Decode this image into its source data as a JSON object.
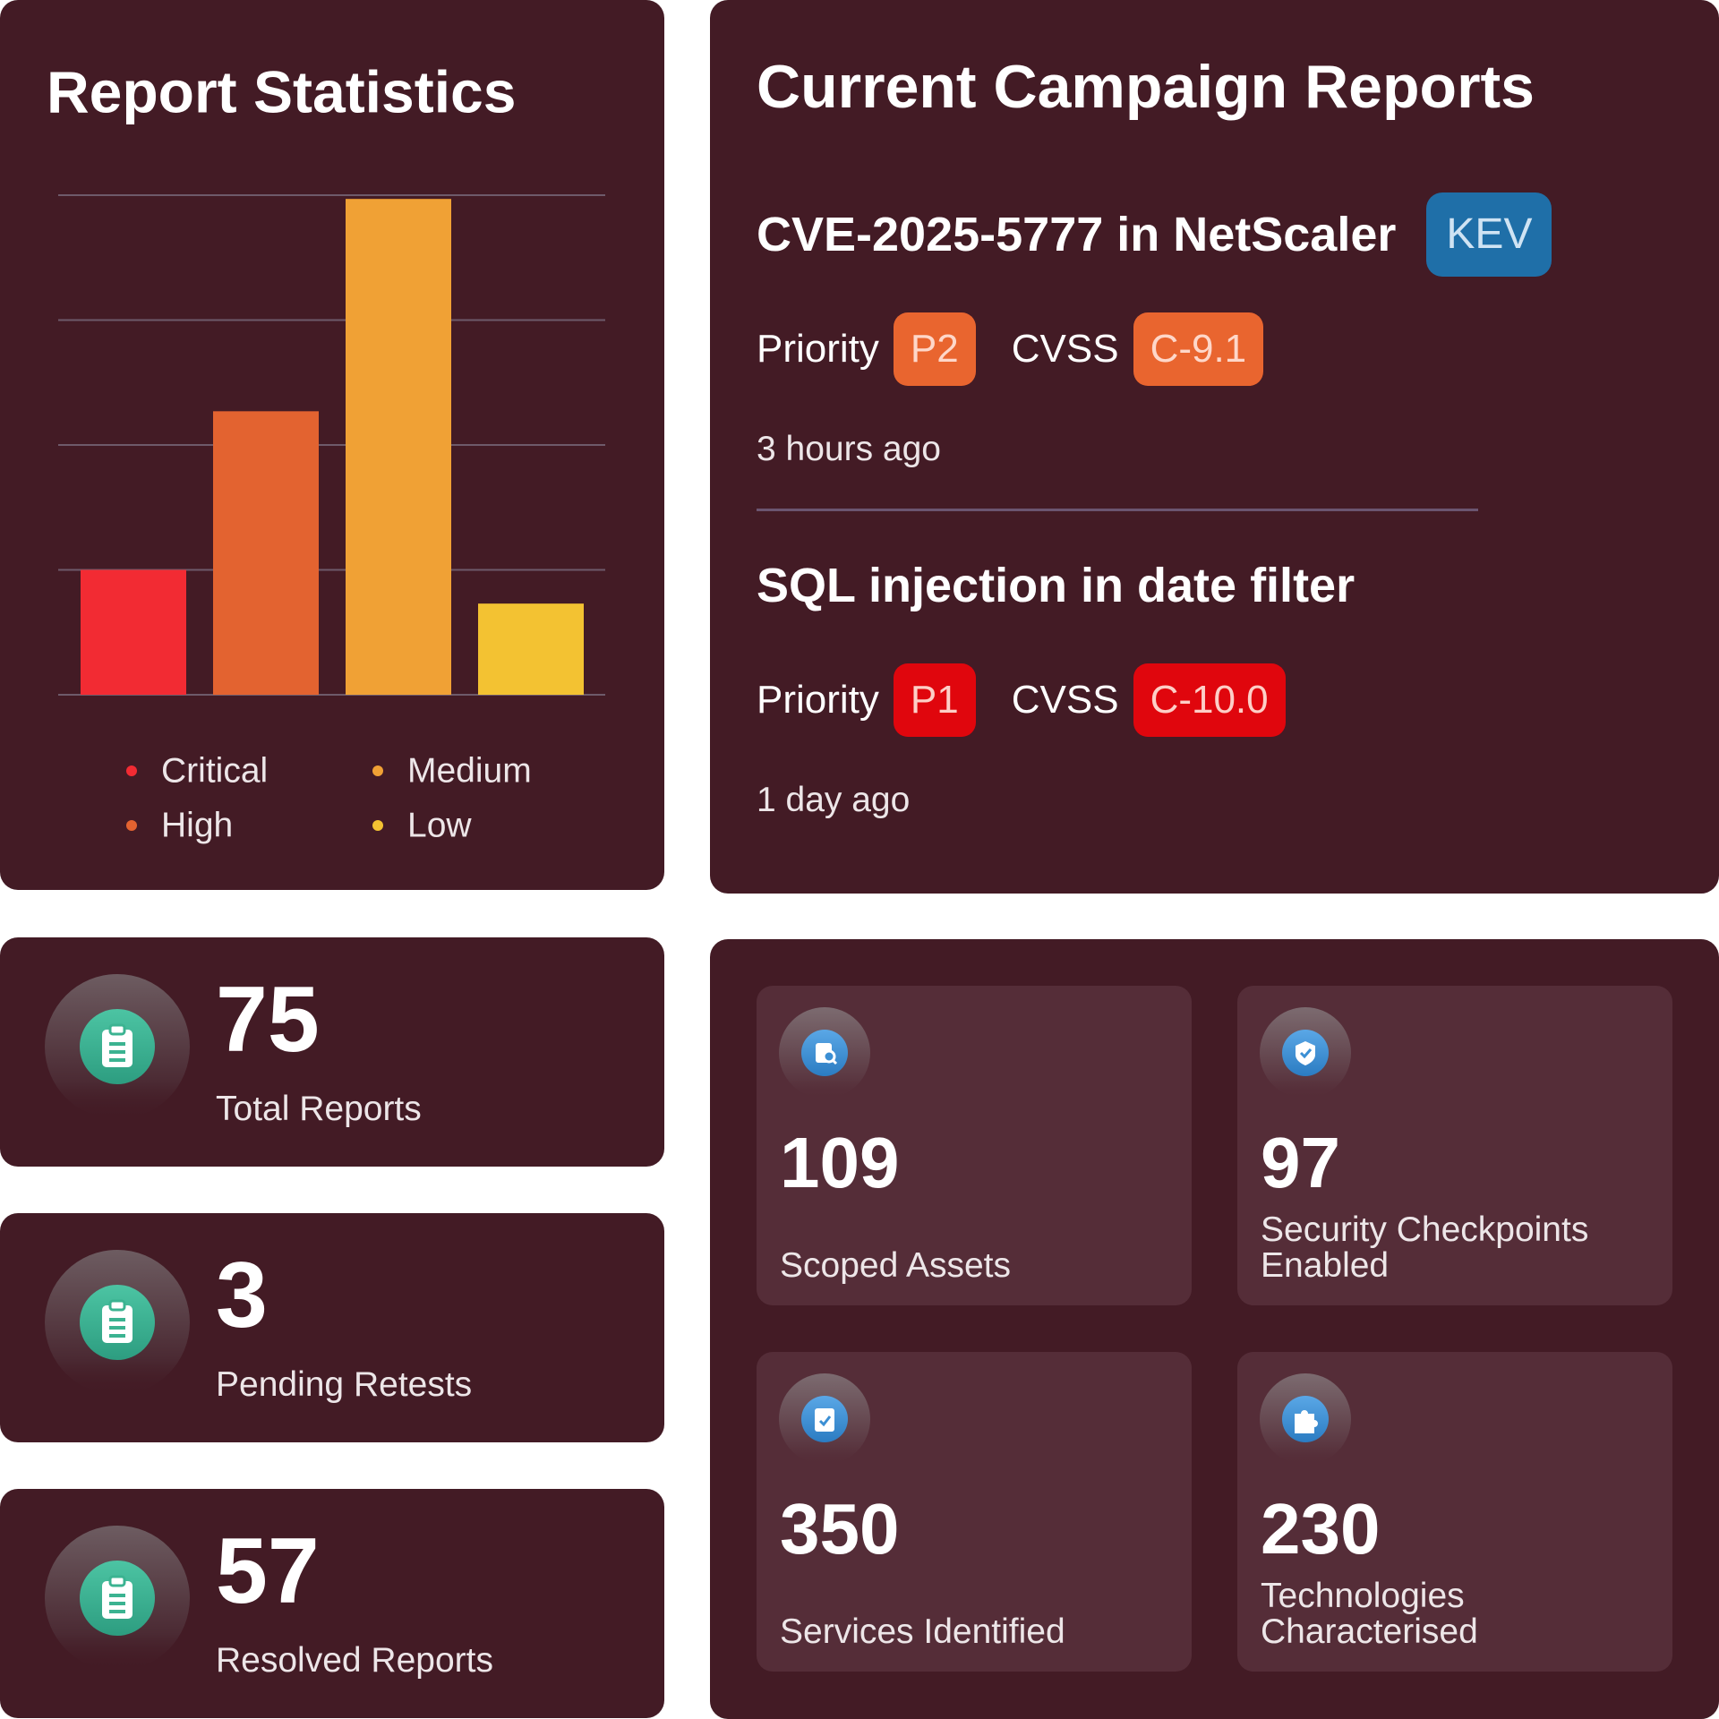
{
  "chart_data": {
    "type": "bar",
    "title": "Report Statistics",
    "categories": [
      "Critical",
      "High",
      "Medium",
      "Low"
    ],
    "values": [
      1,
      2.27,
      3.97,
      0.73
    ],
    "colors": [
      "#f22b33",
      "#e36330",
      "#f0a135",
      "#f3c232"
    ],
    "ylim": [
      0,
      4
    ],
    "yticks": [
      0,
      1,
      2,
      3,
      4
    ],
    "grid": true
  },
  "campaign_reports": {
    "title": "Current Campaign Reports",
    "items": [
      {
        "title": "CVE-2025-5777 in NetScaler",
        "tag": "KEV",
        "priority_label": "Priority",
        "priority": "P2",
        "cvss_label": "CVSS",
        "cvss": "C-9.1",
        "time": "3 hours ago",
        "badge_color": "#e9652f"
      },
      {
        "title": "SQL injection in date filter",
        "priority_label": "Priority",
        "priority": "P1",
        "cvss_label": "CVSS",
        "cvss": "C-10.0",
        "time": "1 day ago",
        "badge_color": "#e0060d"
      }
    ]
  },
  "summary_stats": [
    {
      "value": "75",
      "label": "Total Reports"
    },
    {
      "value": "3",
      "label": "Pending Retests"
    },
    {
      "value": "57",
      "label": "Resolved Reports"
    }
  ],
  "metrics": [
    {
      "value": "109",
      "label": "Scoped Assets"
    },
    {
      "value": "97",
      "label": "Security Checkpoints Enabled"
    },
    {
      "value": "350",
      "label": "Services Identified"
    },
    {
      "value": "230",
      "label": "Technologies Characterised"
    }
  ]
}
